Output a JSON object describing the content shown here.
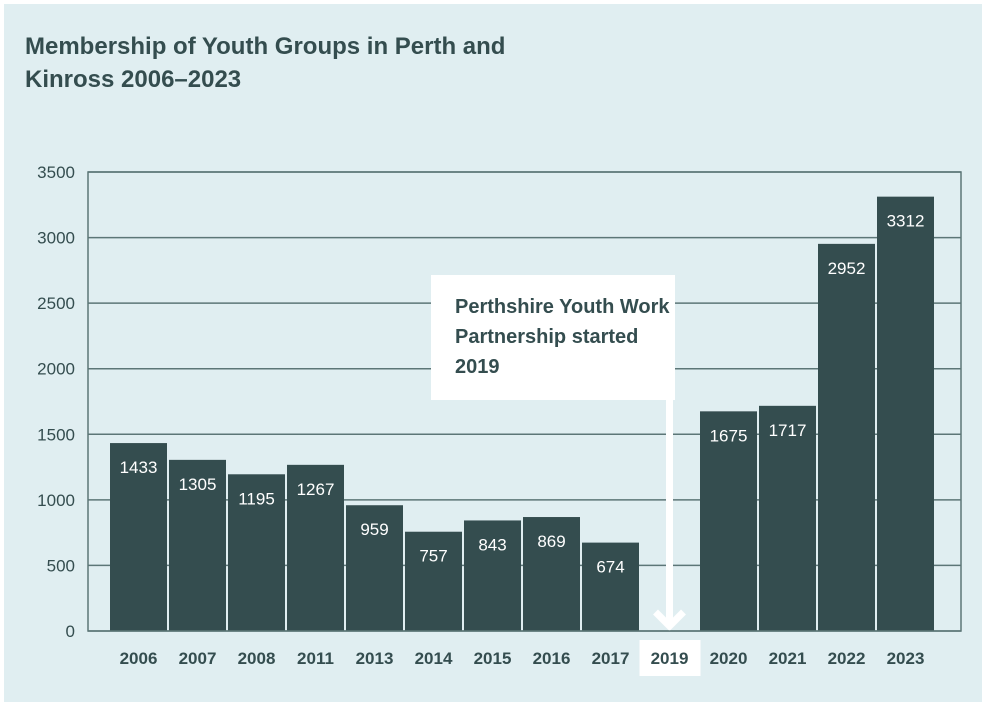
{
  "chart_data": {
    "type": "bar",
    "title": "Membership of Youth Groups in Perth and Kinross 2006–2023",
    "categories": [
      "2006",
      "2007",
      "2008",
      "2011",
      "2013",
      "2014",
      "2015",
      "2016",
      "2017",
      "2019",
      "2020",
      "2021",
      "2022",
      "2023"
    ],
    "values": [
      1433,
      1305,
      1195,
      1267,
      959,
      757,
      843,
      869,
      674,
      null,
      1675,
      1717,
      2952,
      3312
    ],
    "xlabel": "",
    "ylabel": "",
    "ylim": [
      0,
      3500
    ],
    "yticks": [
      0,
      500,
      1000,
      1500,
      2000,
      2500,
      3000,
      3500
    ],
    "grid": true,
    "annotation": {
      "text": "Perthshire Youth Work Partnership started 2019",
      "category": "2019"
    },
    "colors": {
      "bar": "#344d4f",
      "background": "#e0eef1",
      "text": "#344d4f"
    }
  }
}
